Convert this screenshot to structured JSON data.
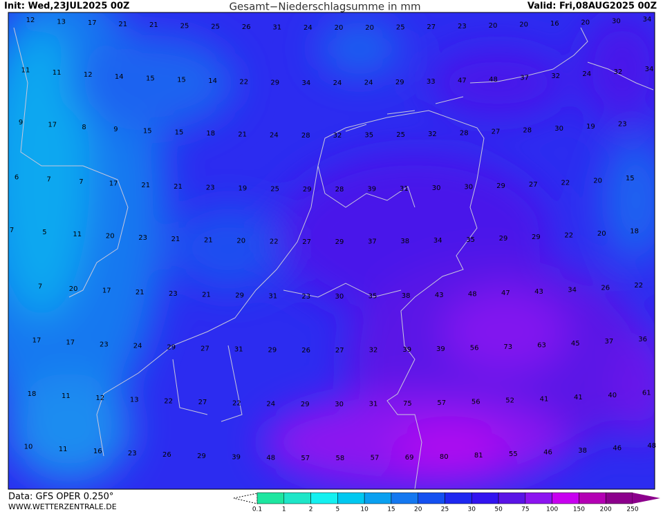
{
  "header": {
    "init": "Init: Wed,23JUL2025 00Z",
    "title": "Gesamt−Niederschlagsumme in mm",
    "valid": "Valid: Fri,08AUG2025 00Z"
  },
  "footer": {
    "data": "Data: GFS OPER 0.250°",
    "site": "WWW.WETTERZENTRALE.DE"
  },
  "grid": {
    "rows": [
      [
        12,
        13,
        17,
        21,
        21,
        25,
        25,
        26,
        31,
        24,
        20,
        20,
        25,
        27,
        23,
        20,
        20,
        16,
        20,
        30,
        34
      ],
      [
        11,
        11,
        12,
        14,
        15,
        15,
        14,
        22,
        29,
        34,
        24,
        24,
        29,
        33,
        47,
        48,
        37,
        32,
        24,
        32,
        34
      ],
      [
        9,
        17,
        8,
        9,
        15,
        15,
        18,
        21,
        24,
        28,
        32,
        35,
        25,
        32,
        28,
        27,
        28,
        30,
        19,
        23
      ],
      [
        6,
        7,
        7,
        17,
        21,
        21,
        23,
        19,
        25,
        29,
        28,
        39,
        31,
        30,
        30,
        29,
        27,
        22,
        20,
        15
      ],
      [
        7,
        5,
        11,
        20,
        23,
        21,
        21,
        20,
        22,
        27,
        29,
        37,
        38,
        34,
        35,
        29,
        29,
        22,
        20,
        18
      ],
      [
        7,
        20,
        17,
        21,
        23,
        21,
        29,
        31,
        23,
        30,
        35,
        38,
        43,
        48,
        47,
        43,
        34,
        26,
        22
      ],
      [
        17,
        17,
        23,
        24,
        29,
        27,
        31,
        29,
        26,
        27,
        32,
        39,
        39,
        56,
        73,
        63,
        45,
        37,
        36
      ],
      [
        18,
        11,
        12,
        13,
        22,
        27,
        22,
        24,
        29,
        30,
        31,
        75,
        57,
        56,
        52,
        41,
        41,
        40,
        61
      ],
      [
        10,
        11,
        16,
        23,
        26,
        29,
        39,
        48,
        57,
        58,
        57,
        69,
        80,
        81,
        55,
        46,
        38,
        46,
        48
      ]
    ]
  },
  "legend": {
    "ticks": [
      {
        "value": 0.1,
        "label": "0.1"
      },
      1,
      2,
      5,
      10,
      15,
      20,
      25,
      30,
      50,
      75,
      100,
      150,
      200,
      250
    ],
    "colors": [
      "#1ee6a0",
      "#1ee6c8",
      "#14f0f0",
      "#00c8f0",
      "#0aa0f0",
      "#1478f0",
      "#1450f0",
      "#1e28f0",
      "#3214f0",
      "#5a14e6",
      "#8c14f0",
      "#c800f0",
      "#b400b4",
      "#8c008c"
    ]
  }
}
